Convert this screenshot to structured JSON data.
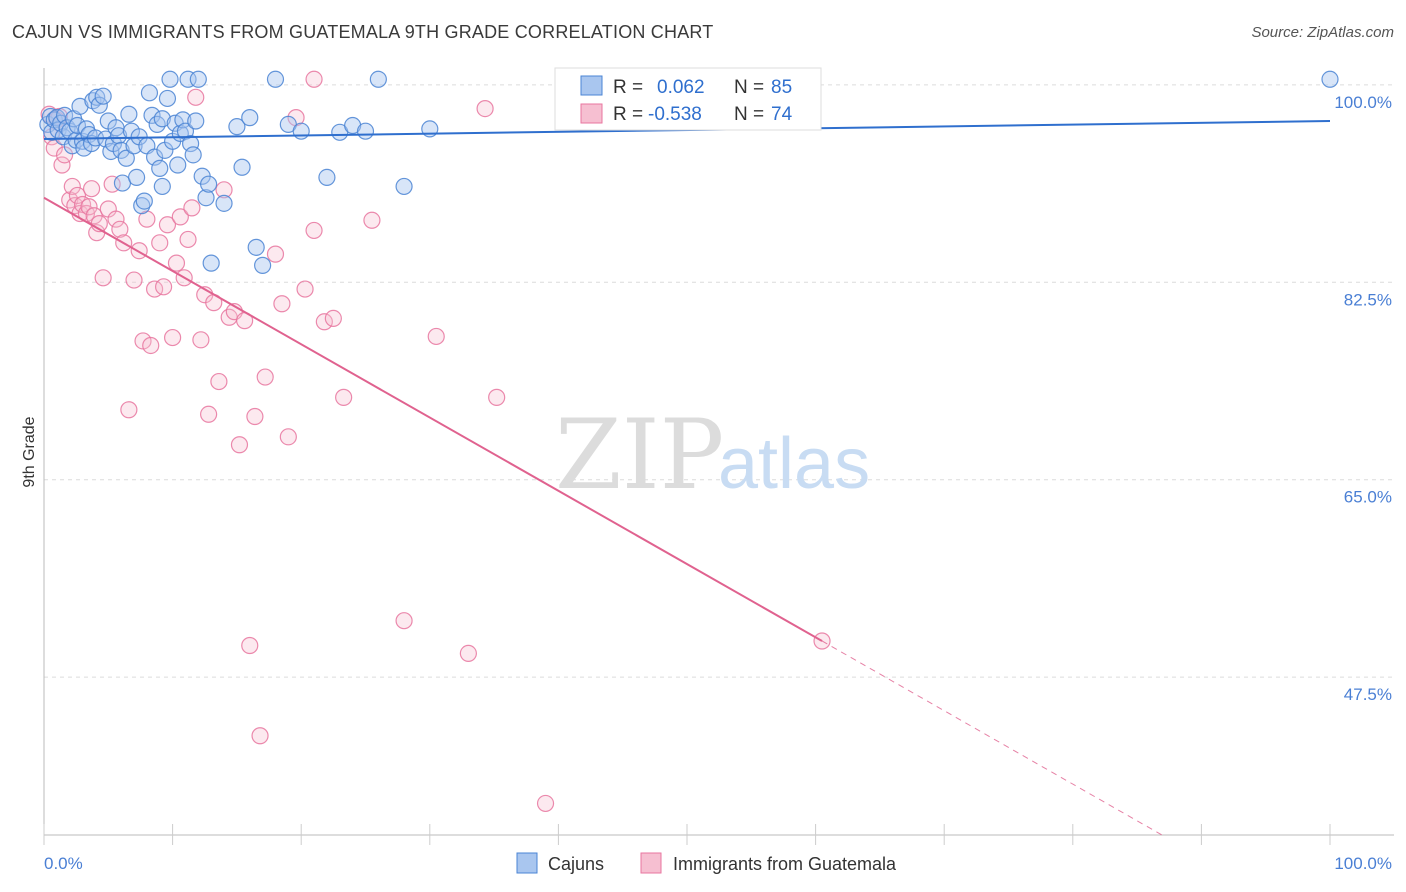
{
  "title": "CAJUN VS IMMIGRANTS FROM GUATEMALA 9TH GRADE CORRELATION CHART",
  "source": "Source: ZipAtlas.com",
  "watermark": {
    "zip": "ZIP",
    "atlas": "atlas"
  },
  "colors": {
    "blue": "#4a84d4",
    "blue_fill": "#a9c6ef",
    "blue_line": "#2f6fce",
    "pink": "#e8769f",
    "pink_fill": "#f6bfd1",
    "pink_line": "#e0628f",
    "grid": "#dcdcdc",
    "tick_text": "#4a7fd4"
  },
  "legend": {
    "rows": [
      {
        "r_label": "R =",
        "r_value": "0.062",
        "n_label": "N =",
        "n_value": "85",
        "series": "blue"
      },
      {
        "r_label": "R =",
        "r_value": "-0.538",
        "n_label": "N =",
        "n_value": "74",
        "series": "pink"
      }
    ]
  },
  "bottom_legend": [
    "Cajuns",
    "Immigrants from Guatemala"
  ],
  "chart_data": {
    "type": "scatter",
    "title": "CAJUN VS IMMIGRANTS FROM GUATEMALA 9TH GRADE CORRELATION CHART",
    "xlabel": "",
    "ylabel": "9th Grade",
    "xlim": [
      0,
      100
    ],
    "ylim": [
      33.5,
      101.5
    ],
    "x_tick_labels": [
      "0.0%",
      "100.0%"
    ],
    "y_ticks": [
      47.5,
      65.0,
      82.5,
      100.0
    ],
    "y_tick_labels": [
      "47.5%",
      "65.0%",
      "82.5%",
      "100.0%"
    ],
    "grid": true,
    "legend_position": "top-center",
    "series": [
      {
        "name": "Cajuns",
        "color": "blue",
        "r": 0.062,
        "n": 85,
        "trend": {
          "x": [
            0,
            100
          ],
          "y": [
            95.2,
            96.8
          ]
        },
        "points": [
          [
            0.3,
            96.5
          ],
          [
            0.5,
            97.2
          ],
          [
            0.6,
            95.8
          ],
          [
            0.8,
            96.9
          ],
          [
            1.0,
            97.1
          ],
          [
            1.1,
            96.0
          ],
          [
            1.3,
            96.6
          ],
          [
            1.5,
            95.4
          ],
          [
            1.6,
            97.3
          ],
          [
            1.8,
            96.2
          ],
          [
            2.0,
            95.9
          ],
          [
            2.2,
            94.6
          ],
          [
            2.3,
            97.0
          ],
          [
            2.5,
            95.1
          ],
          [
            2.6,
            96.4
          ],
          [
            2.8,
            98.1
          ],
          [
            3.0,
            95.0
          ],
          [
            3.1,
            94.4
          ],
          [
            3.3,
            96.1
          ],
          [
            3.5,
            95.6
          ],
          [
            3.7,
            94.8
          ],
          [
            3.8,
            98.6
          ],
          [
            4.0,
            95.3
          ],
          [
            4.1,
            98.9
          ],
          [
            4.3,
            98.2
          ],
          [
            4.6,
            99.0
          ],
          [
            4.8,
            95.2
          ],
          [
            5.0,
            96.8
          ],
          [
            5.2,
            94.1
          ],
          [
            5.4,
            94.8
          ],
          [
            5.6,
            96.2
          ],
          [
            5.8,
            95.5
          ],
          [
            6.0,
            94.2
          ],
          [
            6.1,
            91.3
          ],
          [
            6.4,
            93.5
          ],
          [
            6.6,
            97.4
          ],
          [
            6.8,
            95.9
          ],
          [
            7.0,
            94.6
          ],
          [
            7.2,
            91.8
          ],
          [
            7.4,
            95.4
          ],
          [
            7.6,
            89.3
          ],
          [
            7.8,
            89.7
          ],
          [
            8.0,
            94.6
          ],
          [
            8.2,
            99.3
          ],
          [
            8.4,
            97.3
          ],
          [
            8.6,
            93.6
          ],
          [
            8.8,
            96.5
          ],
          [
            9.0,
            92.6
          ],
          [
            9.2,
            97.0
          ],
          [
            9.4,
            94.2
          ],
          [
            9.6,
            98.8
          ],
          [
            9.8,
            100.5
          ],
          [
            10.0,
            95.0
          ],
          [
            10.2,
            96.6
          ],
          [
            10.4,
            92.9
          ],
          [
            10.6,
            95.7
          ],
          [
            10.8,
            96.9
          ],
          [
            11.0,
            95.9
          ],
          [
            11.2,
            100.5
          ],
          [
            11.4,
            94.8
          ],
          [
            11.6,
            93.8
          ],
          [
            11.8,
            96.8
          ],
          [
            12.0,
            100.5
          ],
          [
            12.3,
            91.9
          ],
          [
            12.6,
            90.0
          ],
          [
            13.0,
            84.2
          ],
          [
            14.0,
            89.5
          ],
          [
            15.0,
            96.3
          ],
          [
            15.4,
            92.7
          ],
          [
            16.0,
            97.1
          ],
          [
            16.5,
            85.6
          ],
          [
            17.0,
            84.0
          ],
          [
            18.0,
            100.5
          ],
          [
            19.0,
            96.5
          ],
          [
            20.0,
            95.9
          ],
          [
            22.0,
            91.8
          ],
          [
            23.0,
            95.8
          ],
          [
            24.0,
            96.4
          ],
          [
            25.0,
            95.9
          ],
          [
            26.0,
            100.5
          ],
          [
            28.0,
            91.0
          ],
          [
            30.0,
            96.1
          ],
          [
            12.8,
            91.2
          ],
          [
            9.2,
            91.0
          ],
          [
            100.0,
            100.5
          ]
        ]
      },
      {
        "name": "Immigrants from Guatemala",
        "color": "pink",
        "r": -0.538,
        "n": 74,
        "trend": {
          "x": [
            0,
            60.5
          ],
          "y": [
            90.0,
            50.7
          ]
        },
        "trend_dashed": {
          "x": [
            60.5,
            100
          ],
          "y": [
            50.7,
            25.0
          ]
        },
        "points": [
          [
            0.4,
            97.4
          ],
          [
            0.6,
            95.4
          ],
          [
            0.8,
            94.4
          ],
          [
            1.0,
            96.9
          ],
          [
            1.2,
            97.2
          ],
          [
            1.4,
            92.9
          ],
          [
            1.6,
            93.8
          ],
          [
            2.0,
            89.8
          ],
          [
            2.2,
            91.0
          ],
          [
            2.4,
            89.3
          ],
          [
            2.6,
            90.2
          ],
          [
            2.8,
            88.6
          ],
          [
            3.0,
            89.4
          ],
          [
            3.3,
            88.6
          ],
          [
            3.5,
            89.2
          ],
          [
            3.7,
            90.8
          ],
          [
            3.9,
            88.4
          ],
          [
            4.1,
            86.9
          ],
          [
            4.3,
            87.7
          ],
          [
            4.6,
            82.9
          ],
          [
            5.0,
            89.0
          ],
          [
            5.3,
            91.2
          ],
          [
            5.6,
            88.1
          ],
          [
            5.9,
            87.2
          ],
          [
            6.2,
            86.0
          ],
          [
            6.6,
            71.2
          ],
          [
            7.0,
            82.7
          ],
          [
            7.4,
            85.3
          ],
          [
            7.7,
            77.3
          ],
          [
            8.0,
            88.1
          ],
          [
            8.3,
            76.9
          ],
          [
            8.6,
            81.9
          ],
          [
            9.0,
            86.0
          ],
          [
            9.3,
            82.1
          ],
          [
            9.6,
            87.6
          ],
          [
            10.0,
            77.6
          ],
          [
            10.3,
            84.2
          ],
          [
            10.6,
            88.3
          ],
          [
            10.9,
            82.9
          ],
          [
            11.2,
            86.3
          ],
          [
            11.5,
            89.1
          ],
          [
            11.8,
            98.9
          ],
          [
            12.2,
            77.4
          ],
          [
            12.5,
            81.4
          ],
          [
            12.8,
            70.8
          ],
          [
            13.2,
            80.7
          ],
          [
            13.6,
            73.7
          ],
          [
            14.0,
            90.7
          ],
          [
            14.4,
            79.4
          ],
          [
            14.8,
            79.9
          ],
          [
            15.2,
            68.1
          ],
          [
            15.6,
            79.1
          ],
          [
            16.0,
            50.3
          ],
          [
            16.4,
            70.6
          ],
          [
            16.8,
            42.3
          ],
          [
            17.2,
            74.1
          ],
          [
            18.0,
            85.0
          ],
          [
            18.5,
            80.6
          ],
          [
            19.0,
            68.8
          ],
          [
            19.6,
            97.1
          ],
          [
            20.3,
            81.9
          ],
          [
            21.0,
            87.1
          ],
          [
            21.8,
            79.0
          ],
          [
            22.5,
            79.3
          ],
          [
            23.3,
            72.3
          ],
          [
            25.5,
            88.0
          ],
          [
            28.0,
            52.5
          ],
          [
            30.5,
            77.7
          ],
          [
            33.0,
            49.6
          ],
          [
            34.3,
            97.9
          ],
          [
            35.2,
            72.3
          ],
          [
            39.0,
            36.3
          ],
          [
            21.0,
            100.5
          ],
          [
            60.5,
            50.7
          ]
        ]
      }
    ]
  }
}
